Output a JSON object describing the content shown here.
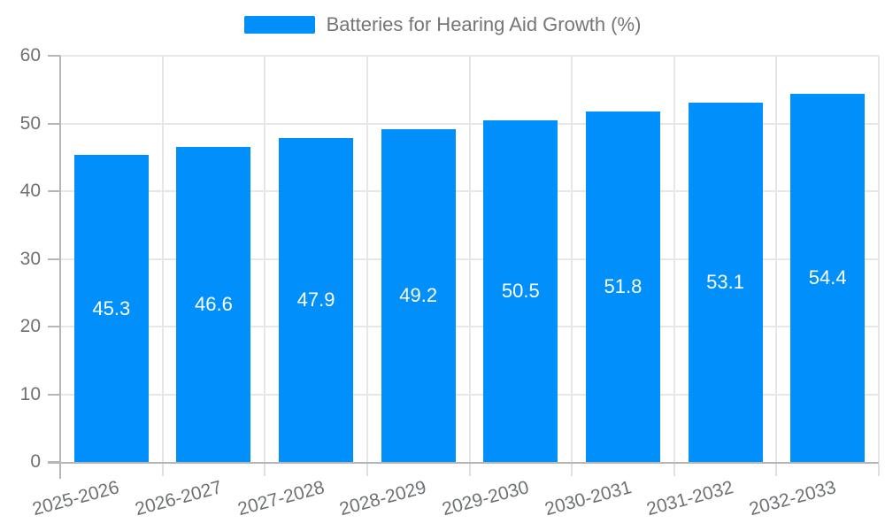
{
  "chart_data": {
    "type": "bar",
    "series_name": "Batteries for Hearing Aid Growth (%)",
    "categories": [
      "2025-2026",
      "2026-2027",
      "2027-2028",
      "2028-2029",
      "2029-2030",
      "2030-2031",
      "2031-2032",
      "2032-2033"
    ],
    "values": [
      45.3,
      46.6,
      47.9,
      49.2,
      50.5,
      51.8,
      53.1,
      54.4
    ],
    "value_label_decimals": 1,
    "ylim": [
      0,
      60
    ],
    "y_ticks": [
      0,
      10,
      20,
      30,
      40,
      50,
      60
    ],
    "legend_position": "top",
    "grid": true,
    "colors": {
      "bar": "#008FFB",
      "grid": "#e7e7e7",
      "axis": "#b6b6b6",
      "xtick": "#e0e0e0",
      "label_text": "#6e7173",
      "legend_text": "#757575",
      "value_text": "#ffffff",
      "background": "#ffffff"
    }
  }
}
